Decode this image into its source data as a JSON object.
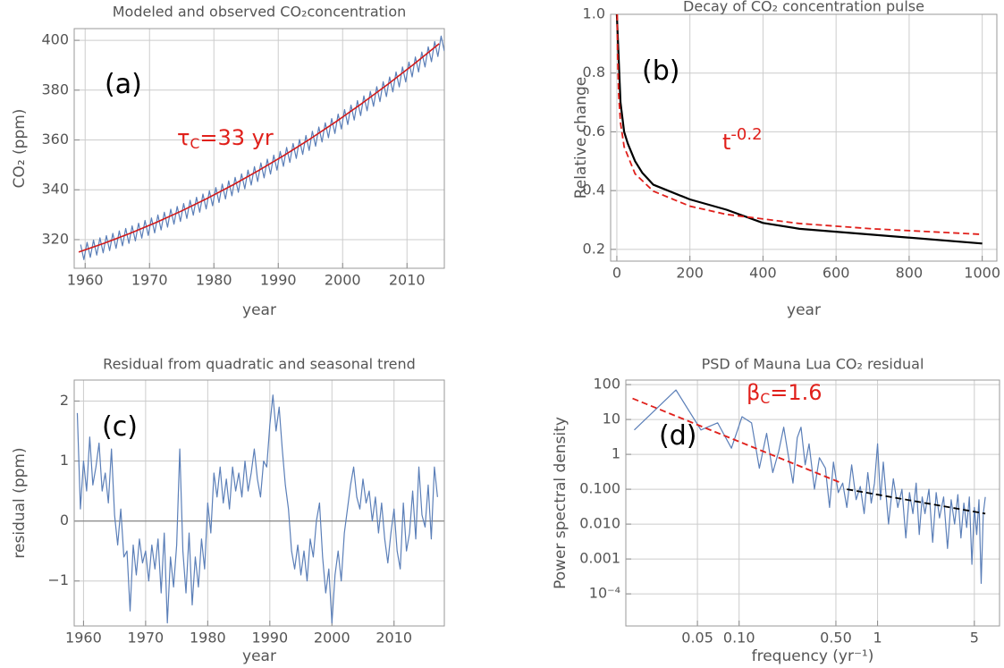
{
  "chart_data": [
    {
      "type": "line",
      "title": "Modeled and observed CO₂concentration",
      "x_label": "year",
      "y_label": "CO₂ (ppm)",
      "xlim": [
        1958.3,
        2015.8
      ],
      "ylim": [
        308.5,
        404.7
      ],
      "xticks": [
        1960,
        1970,
        1980,
        1990,
        2000,
        2010
      ],
      "yticks": [
        320,
        340,
        360,
        380,
        400
      ],
      "grid": true,
      "series": [
        {
          "color": "#5b7fb8",
          "width": 1.2,
          "x": [
            1959.3,
            1959.8,
            1960.3,
            1960.8,
            1961.3,
            1961.8,
            1962.3,
            1962.8,
            1963.3,
            1963.8,
            1964.3,
            1964.8,
            1965.3,
            1965.8,
            1966.3,
            1966.8,
            1967.3,
            1967.8,
            1968.3,
            1968.8,
            1969.3,
            1969.8,
            1970.3,
            1970.8,
            1971.3,
            1971.8,
            1972.3,
            1972.8,
            1973.3,
            1973.8,
            1974.3,
            1974.8,
            1975.3,
            1975.8,
            1976.3,
            1976.8,
            1977.3,
            1977.8,
            1978.3,
            1978.8,
            1979.3,
            1979.8,
            1980.3,
            1980.8,
            1981.3,
            1981.8,
            1982.3,
            1982.8,
            1983.3,
            1983.8,
            1984.3,
            1984.8,
            1985.3,
            1985.8,
            1986.3,
            1986.8,
            1987.3,
            1987.8,
            1988.3,
            1988.8,
            1989.3,
            1989.8,
            1990.3,
            1990.8,
            1991.3,
            1991.8,
            1992.3,
            1992.8,
            1993.3,
            1993.8,
            1994.3,
            1994.8,
            1995.3,
            1995.8,
            1996.3,
            1996.8,
            1997.3,
            1997.8,
            1998.3,
            1998.8,
            1999.3,
            1999.8,
            2000.3,
            2000.8,
            2001.3,
            2001.8,
            2002.3,
            2002.8,
            2003.3,
            2003.8,
            2004.3,
            2004.8,
            2005.3,
            2005.8,
            2006.3,
            2006.8,
            2007.3,
            2007.8,
            2008.3,
            2008.8,
            2009.3,
            2009.8,
            2010.3,
            2010.8,
            2011.3,
            2011.8,
            2012.3,
            2012.8,
            2013.3,
            2013.8,
            2014.3,
            2014.8,
            2015.3,
            2015.8
          ],
          "values": [
            318.0,
            312.0,
            318.9,
            312.9,
            319.8,
            313.8,
            320.7,
            314.7,
            321.6,
            315.6,
            322.5,
            316.5,
            323.5,
            317.5,
            324.5,
            318.5,
            325.5,
            319.5,
            326.6,
            320.6,
            327.7,
            321.7,
            328.7,
            322.7,
            329.9,
            323.9,
            331.0,
            325.0,
            332.2,
            326.2,
            333.3,
            327.3,
            334.5,
            328.5,
            335.8,
            329.8,
            337.0,
            331.0,
            338.3,
            332.3,
            339.6,
            333.6,
            340.9,
            334.9,
            342.3,
            336.3,
            343.6,
            337.6,
            345.0,
            339.0,
            346.4,
            340.4,
            347.9,
            341.9,
            349.3,
            343.3,
            350.8,
            344.8,
            352.3,
            346.3,
            353.9,
            347.9,
            355.4,
            349.4,
            357.0,
            351.0,
            358.6,
            352.6,
            360.2,
            354.2,
            361.8,
            355.8,
            363.5,
            357.5,
            365.2,
            359.2,
            366.9,
            360.9,
            368.6,
            362.6,
            370.4,
            364.4,
            372.2,
            366.2,
            374.0,
            368.0,
            375.8,
            369.8,
            377.7,
            371.7,
            379.5,
            373.5,
            381.4,
            375.4,
            383.4,
            377.4,
            385.3,
            379.3,
            387.3,
            381.3,
            389.3,
            383.3,
            391.3,
            385.3,
            393.3,
            387.3,
            395.3,
            389.3,
            397.4,
            391.4,
            399.5,
            393.5,
            401.7,
            395.7
          ]
        },
        {
          "color": "#d11a1a",
          "width": 1.6,
          "x": [
            1959,
            1963,
            1967,
            1971,
            1975,
            1979,
            1983,
            1987,
            1991,
            1995,
            1999,
            2003,
            2007,
            2011,
            2015
          ],
          "values": [
            315.0,
            318.58,
            322.54,
            326.86,
            331.54,
            336.6,
            342.02,
            347.82,
            353.98,
            360.5,
            367.4,
            374.67,
            382.31,
            390.29,
            398.66
          ]
        }
      ],
      "annotations": [
        {
          "text": "(a)",
          "color": "#000000"
        },
        {
          "text": "τ",
          "sub": "C",
          "rest": "=33 yr",
          "color": "#e0201b"
        }
      ]
    },
    {
      "type": "line",
      "title": "Decay of CO₂ concentration pulse",
      "x_label": "year",
      "y_label": "Relative change",
      "xlim": [
        -17,
        1040
      ],
      "ylim": [
        0.16,
        1.0
      ],
      "xticks": [
        0,
        200,
        400,
        600,
        800,
        1000
      ],
      "yticks": [
        0.2,
        0.4,
        0.6,
        0.8,
        {
          "value": 1.0,
          "label": "1.0"
        }
      ],
      "grid": true,
      "series": [
        {
          "color": "#000000",
          "width": 2.2,
          "x": [
            0,
            10,
            20,
            30,
            50,
            70,
            100,
            200,
            300,
            400,
            500,
            1000
          ],
          "values": [
            1.0,
            0.7,
            0.6,
            0.56,
            0.5,
            0.46,
            0.42,
            0.37,
            0.335,
            0.29,
            0.27,
            0.22
          ]
        },
        {
          "color": "#e0201b",
          "width": 1.8,
          "dash": true,
          "x": [
            1,
            2,
            5,
            10,
            20,
            50,
            100,
            200,
            300,
            500,
            700,
            1000
          ],
          "values": [
            1.0,
            0.871,
            0.725,
            0.631,
            0.549,
            0.457,
            0.398,
            0.347,
            0.319,
            0.288,
            0.27,
            0.251
          ]
        }
      ],
      "annotations": [
        {
          "text": "(b)",
          "color": "#000000"
        },
        {
          "text": "t",
          "sup": "-0.2",
          "color": "#e0201b"
        }
      ]
    },
    {
      "type": "line",
      "title": "Residual from quadratic and seasonal trend",
      "x_label": "year",
      "y_label": "residual (ppm)",
      "xlim": [
        1958.5,
        2018.1
      ],
      "ylim": [
        -1.75,
        2.35
      ],
      "xticks": [
        1960,
        1970,
        1980,
        1990,
        2000,
        2010
      ],
      "yticks": [
        {
          "value": -1,
          "label": "−1"
        },
        0,
        1,
        2
      ],
      "grid": true,
      "series": [
        {
          "color": "#5b7fb8",
          "width": 1.2,
          "x": [
            1959,
            1959.5,
            1960,
            1960.5,
            1961,
            1961.5,
            1962,
            1962.5,
            1963,
            1963.5,
            1964,
            1964.5,
            1965,
            1965.5,
            1966,
            1966.5,
            1967,
            1967.5,
            1968,
            1968.5,
            1969,
            1969.5,
            1970,
            1970.5,
            1971,
            1971.5,
            1972,
            1972.5,
            1973,
            1973.5,
            1974,
            1974.5,
            1975,
            1975.5,
            1976,
            1976.5,
            1977,
            1977.5,
            1978,
            1978.5,
            1979,
            1979.5,
            1980,
            1980.5,
            1981,
            1981.5,
            1982,
            1982.5,
            1983,
            1983.5,
            1984,
            1984.5,
            1985,
            1985.5,
            1986,
            1986.5,
            1987,
            1987.5,
            1988,
            1988.5,
            1989,
            1989.5,
            1990,
            1990.5,
            1991,
            1991.5,
            1992,
            1992.5,
            1993,
            1993.5,
            1994,
            1994.5,
            1995,
            1995.5,
            1996,
            1996.5,
            1997,
            1997.5,
            1998,
            1998.5,
            1999,
            1999.5,
            2000,
            2000.5,
            2001,
            2001.5,
            2002,
            2002.5,
            2003,
            2003.5,
            2004,
            2004.5,
            2005,
            2005.5,
            2006,
            2006.5,
            2007,
            2007.5,
            2008,
            2008.5,
            2009,
            2009.5,
            2010,
            2010.5,
            2011,
            2011.5,
            2012,
            2012.5,
            2013,
            2013.5,
            2014,
            2014.5,
            2015,
            2015.5,
            2016,
            2016.5,
            2017
          ],
          "values": [
            1.8,
            0.2,
            1.0,
            0.5,
            1.4,
            0.6,
            0.9,
            1.3,
            0.5,
            0.8,
            0.3,
            1.2,
            0.1,
            -0.4,
            0.2,
            -0.6,
            -0.5,
            -1.5,
            -0.4,
            -0.9,
            -0.3,
            -0.7,
            -0.5,
            -1.0,
            -0.4,
            -0.8,
            -0.3,
            -1.2,
            -0.2,
            -1.7,
            -0.6,
            -1.1,
            -0.4,
            1.2,
            -0.5,
            -1.2,
            -0.2,
            -1.4,
            -0.6,
            -1.1,
            -0.3,
            -0.8,
            0.3,
            -0.2,
            0.8,
            0.4,
            0.9,
            0.3,
            0.7,
            0.2,
            0.9,
            0.5,
            0.8,
            0.4,
            1.0,
            0.5,
            0.8,
            1.2,
            0.7,
            0.4,
            1.0,
            0.9,
            1.6,
            2.1,
            1.5,
            1.9,
            1.2,
            0.6,
            0.2,
            -0.5,
            -0.8,
            -0.4,
            -0.9,
            -0.5,
            -1.0,
            -0.3,
            -0.6,
            0.0,
            0.3,
            -0.6,
            -1.2,
            -0.8,
            -1.7,
            -0.9,
            -0.5,
            -1.0,
            -0.2,
            0.2,
            0.6,
            0.9,
            0.4,
            0.2,
            0.7,
            0.3,
            0.5,
            0.0,
            0.4,
            -0.2,
            0.3,
            -0.3,
            -0.7,
            -0.2,
            0.2,
            -0.5,
            -0.8,
            0.3,
            -0.5,
            -0.2,
            0.5,
            -0.3,
            0.9,
            0.1,
            -0.1,
            0.6,
            -0.3,
            0.9,
            0.4
          ]
        }
      ],
      "annotations": [
        {
          "text": "(c)",
          "color": "#000000"
        }
      ]
    },
    {
      "type": "line",
      "title": "PSD of Mauna Lua CO₂ residual",
      "x_label": "frequency (yr⁻¹)",
      "y_label": "Power spectral density",
      "xlog": true,
      "ylog": true,
      "xlim": [
        0.0152,
        7.6
      ],
      "ylim": [
        1.2e-05,
        135
      ],
      "xticks": [
        0.05,
        {
          "value": 0.1,
          "label": "0.10"
        },
        {
          "value": 0.5,
          "label": "0.50"
        },
        1,
        5
      ],
      "yticks": [
        {
          "value": 0.0001,
          "label": "10⁻⁴"
        },
        0.001,
        {
          "value": 0.01,
          "label": "0.010"
        },
        {
          "value": 0.1,
          "label": "0.100"
        },
        1,
        10,
        100
      ],
      "grid": true,
      "series": [
        {
          "color": "#5b7fb8",
          "width": 1.2,
          "x": [
            0.0175,
            0.035,
            0.053,
            0.07,
            0.088,
            0.105,
            0.123,
            0.14,
            0.158,
            0.175,
            0.193,
            0.21,
            0.228,
            0.245,
            0.263,
            0.28,
            0.3,
            0.32,
            0.35,
            0.38,
            0.42,
            0.45,
            0.48,
            0.52,
            0.56,
            0.6,
            0.65,
            0.7,
            0.75,
            0.8,
            0.85,
            0.9,
            0.95,
            1.0,
            1.05,
            1.1,
            1.2,
            1.3,
            1.4,
            1.5,
            1.6,
            1.7,
            1.8,
            1.9,
            2.0,
            2.1,
            2.2,
            2.35,
            2.5,
            2.65,
            2.8,
            3.0,
            3.2,
            3.4,
            3.6,
            3.8,
            4.0,
            4.2,
            4.4,
            4.6,
            4.8,
            5.0,
            5.2,
            5.4,
            5.6,
            5.8,
            6.0
          ],
          "values": [
            5,
            70,
            5,
            8,
            1.5,
            12,
            8,
            0.4,
            4,
            0.3,
            1.2,
            6,
            0.8,
            0.15,
            3,
            6,
            0.5,
            2,
            0.1,
            0.8,
            0.4,
            0.03,
            0.6,
            0.08,
            0.15,
            0.03,
            0.5,
            0.05,
            0.12,
            0.02,
            0.3,
            0.04,
            0.15,
            2,
            0.05,
            0.6,
            0.01,
            0.2,
            0.03,
            0.1,
            0.004,
            0.08,
            0.02,
            0.15,
            0.005,
            0.06,
            0.02,
            0.1,
            0.003,
            0.08,
            0.015,
            0.06,
            0.002,
            0.05,
            0.01,
            0.07,
            0.004,
            0.04,
            0.008,
            0.06,
            0.0007,
            0.03,
            0.005,
            0.05,
            0.0002,
            0.02,
            0.06
          ]
        },
        {
          "color": "#e0201b",
          "width": 1.8,
          "dash": true,
          "x": [
            0.017,
            0.55
          ],
          "values": [
            40,
            0.15
          ]
        },
        {
          "color": "#000000",
          "width": 1.8,
          "dash": true,
          "x": [
            0.6,
            6.0
          ],
          "values": [
            0.1,
            0.02
          ]
        }
      ],
      "annotations": [
        {
          "text": "(d)",
          "color": "#000000"
        },
        {
          "text": "β",
          "sub": "C",
          "rest": "=1.6",
          "color": "#e0201b"
        }
      ]
    }
  ]
}
